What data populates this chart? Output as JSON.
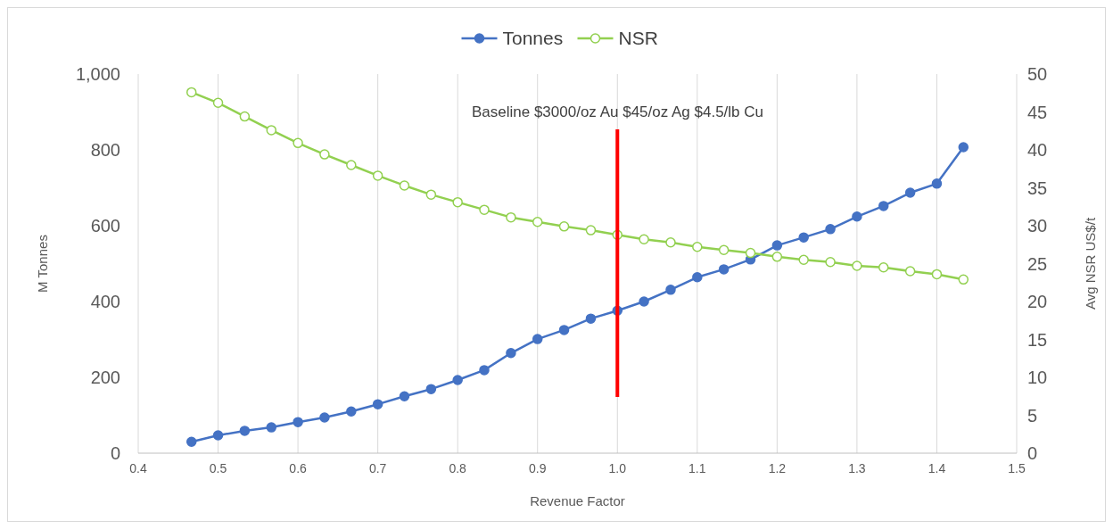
{
  "chart_data": {
    "type": "line",
    "xlabel": "Revenue Factor",
    "ylabel": "M Tonnes",
    "y2label": "Avg NSR US$/t",
    "xlim": [
      0.4,
      1.5
    ],
    "xticks": [
      0.4,
      0.5,
      0.6,
      0.7,
      0.8,
      0.9,
      {
        "value": 1,
        "label": "1.0"
      },
      1.1,
      1.2,
      1.3,
      1.4,
      1.5
    ],
    "ylim": [
      0,
      1000
    ],
    "yticks": [
      0,
      200,
      400,
      600,
      800,
      {
        "value": 1000,
        "label": "1,000"
      }
    ],
    "y2lim": [
      0,
      50
    ],
    "y2ticks": [
      0,
      5,
      10,
      15,
      20,
      25,
      30,
      35,
      40,
      45,
      50
    ],
    "x": [
      0.4667,
      0.5,
      0.5333,
      0.5667,
      0.6,
      0.6333,
      0.6667,
      0.7,
      0.7333,
      0.7667,
      0.8,
      0.8333,
      0.8667,
      0.9,
      0.9333,
      0.9667,
      1.0,
      1.0333,
      1.0667,
      1.1,
      1.1333,
      1.1667,
      1.2,
      1.2333,
      1.2667,
      1.3,
      1.3333,
      1.3667,
      1.4,
      1.4333
    ],
    "series": [
      {
        "name": "Tonnes",
        "color": "#4472c4",
        "marker": "circle",
        "values": [
          30,
          47,
          59,
          68,
          82,
          94,
          110,
          129,
          150,
          169,
          193,
          219,
          264,
          301,
          325,
          355,
          376,
          400,
          431,
          464,
          485,
          511,
          548,
          569,
          591,
          624,
          652,
          687,
          711,
          807
        ]
      },
      {
        "name": "NSR",
        "color": "#92d050",
        "marker": "circle",
        "axis": "y2",
        "values": [
          47.6,
          46.2,
          44.4,
          42.6,
          40.9,
          39.4,
          38.0,
          36.6,
          35.3,
          34.1,
          33.1,
          32.1,
          31.1,
          30.5,
          29.9,
          29.4,
          28.8,
          28.2,
          27.8,
          27.2,
          26.8,
          26.4,
          25.9,
          25.5,
          25.2,
          24.7,
          24.5,
          24.0,
          23.6,
          22.9
        ]
      },
      {
        "color": "#ff0000",
        "marker": "none",
        "x": [
          1.0,
          1.0
        ],
        "values": [
          148,
          854
        ]
      }
    ],
    "annotations": [
      "Baseline $3000/oz Au $45/oz Ag $4.5/lb Cu"
    ],
    "grid": "x",
    "legend": "top"
  }
}
